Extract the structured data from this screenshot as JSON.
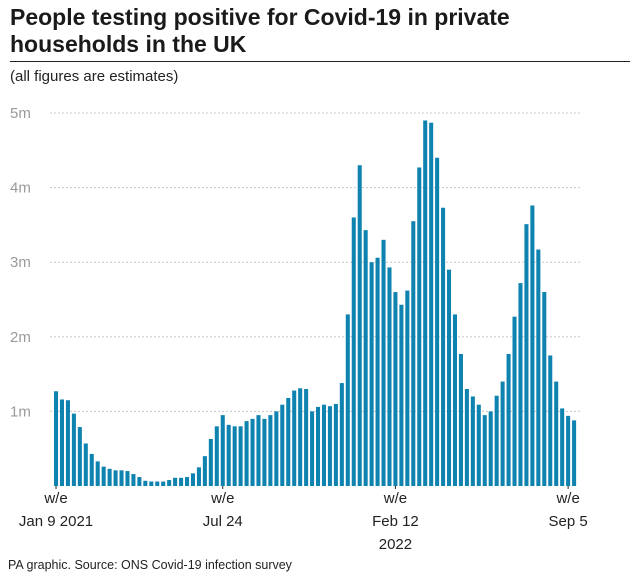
{
  "title": "People testing positive for Covid-19 in private households in the UK",
  "subtitle": "(all figures are estimates)",
  "footer": "PA graphic. Source: ONS Covid-19 infection survey",
  "colors": {
    "bar": "#0f83b0",
    "tick_text": "#9a9a9a",
    "grid": "#c8c8c8"
  },
  "chart_data": {
    "type": "bar",
    "ylim": [
      0,
      5000000
    ],
    "yticks": [
      {
        "value": 1000000,
        "label": "1m"
      },
      {
        "value": 2000000,
        "label": "2m"
      },
      {
        "value": 3000000,
        "label": "3m"
      },
      {
        "value": 4000000,
        "label": "4m"
      },
      {
        "value": 5000000,
        "label": "5m"
      }
    ],
    "xticks": [
      {
        "index": 0,
        "lines": [
          "w/e",
          "Jan 9 2021"
        ]
      },
      {
        "index": 28,
        "lines": [
          "w/e",
          "Jul 24"
        ]
      },
      {
        "index": 57,
        "lines": [
          "w/e",
          "Feb 12",
          "2022"
        ]
      },
      {
        "index": 86,
        "lines": [
          "w/e",
          "Sep 5"
        ]
      }
    ],
    "grid": true,
    "values": [
      1270000,
      1160000,
      1150000,
      970000,
      790000,
      570000,
      430000,
      330000,
      260000,
      230000,
      210000,
      210000,
      200000,
      160000,
      120000,
      70000,
      60000,
      60000,
      60000,
      80000,
      110000,
      110000,
      120000,
      170000,
      250000,
      400000,
      630000,
      800000,
      950000,
      820000,
      800000,
      800000,
      870000,
      900000,
      950000,
      900000,
      950000,
      1000000,
      1090000,
      1180000,
      1280000,
      1310000,
      1300000,
      1000000,
      1060000,
      1090000,
      1070000,
      1100000,
      1380000,
      2300000,
      3600000,
      4300000,
      3430000,
      3000000,
      3060000,
      3300000,
      2930000,
      2600000,
      2430000,
      2620000,
      3550000,
      4270000,
      4900000,
      4870000,
      4400000,
      3730000,
      2900000,
      2300000,
      1770000,
      1300000,
      1200000,
      1090000,
      950000,
      1000000,
      1210000,
      1400000,
      1770000,
      2270000,
      2720000,
      3510000,
      3760000,
      3170000,
      2600000,
      1750000,
      1400000,
      1040000,
      940000,
      880000
    ]
  }
}
